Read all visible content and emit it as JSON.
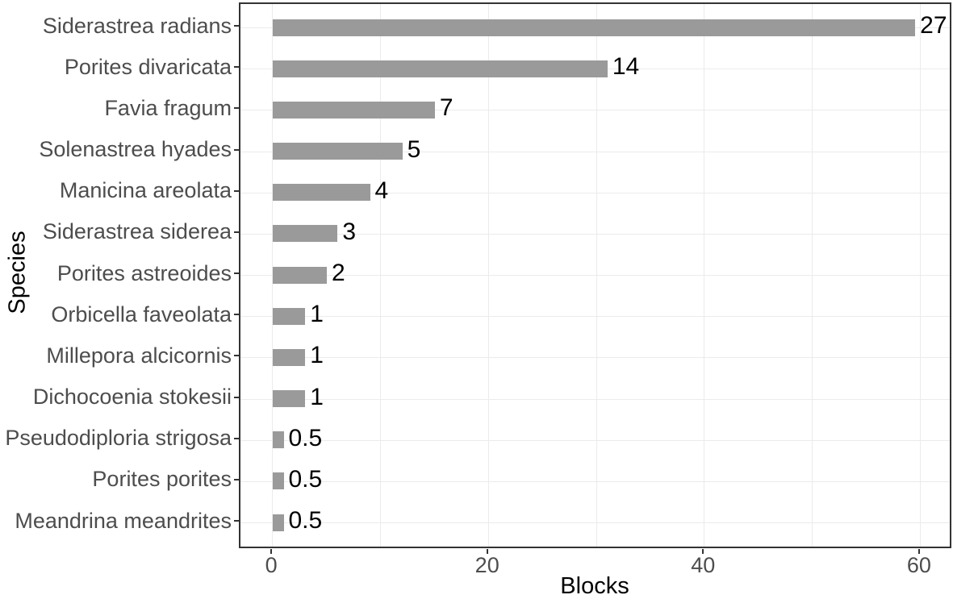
{
  "chart_data": {
    "type": "bar",
    "orientation": "horizontal",
    "title": "",
    "xlabel": "Blocks",
    "ylabel": "Species",
    "xlim": [
      -3,
      63
    ],
    "x_ticks": [
      0,
      20,
      40,
      60
    ],
    "x_gridlines": [
      0,
      10,
      20,
      30,
      40,
      50,
      60
    ],
    "grid": true,
    "legend": "none",
    "categories": [
      "Siderastrea radians",
      "Porites divaricata",
      "Favia fragum",
      "Solenastrea hyades",
      "Manicina areolata",
      "Siderastrea siderea",
      "Porites astreoides",
      "Orbicella faveolata",
      "Millepora alcicornis",
      "Dichocoenia stokesii",
      "Pseudodiploria strigosa",
      "Porites porites",
      "Meandrina meandrites"
    ],
    "values": [
      59.5,
      31,
      15,
      12,
      9,
      6,
      5,
      3,
      3,
      3,
      1,
      1,
      1
    ],
    "bar_labels": [
      "27",
      "14",
      "7",
      "5",
      "4",
      "3",
      "2",
      "1",
      "1",
      "1",
      "0.5",
      "0.5",
      "0.5"
    ]
  },
  "colors": {
    "bar": "#9a9a9a",
    "axis_text": "#4d4d4d",
    "label_text": "#000000",
    "gridline": "#ebebeb",
    "panel_border": "#333333",
    "tick_mark": "#333333"
  }
}
